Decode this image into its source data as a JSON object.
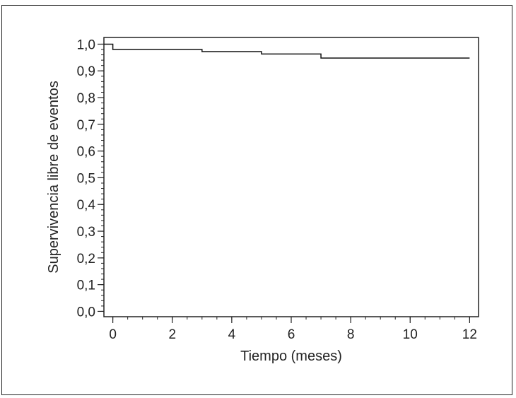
{
  "chart_data": {
    "type": "line",
    "title": "",
    "xlabel": "Tiempo (meses)",
    "ylabel": "Supervivencia libre de eventos",
    "xlim": [
      -0.3,
      12.3
    ],
    "ylim": [
      -0.02,
      1.025
    ],
    "x_ticks": [
      0,
      2,
      4,
      6,
      8,
      10,
      12
    ],
    "x_tick_labels": [
      "0",
      "2",
      "4",
      "6",
      "8",
      "10",
      "12"
    ],
    "y_ticks": [
      0.0,
      0.1,
      0.2,
      0.3,
      0.4,
      0.5,
      0.6,
      0.7,
      0.8,
      0.9,
      1.0
    ],
    "y_tick_labels": [
      "0,0",
      "0,1",
      "0,2",
      "0,3",
      "0,4",
      "0,5",
      "0,6",
      "0,7",
      "0,8",
      "0,9",
      "1,0"
    ],
    "minor_x_step": 0.5,
    "minor_y_step": 0.02,
    "grid": false,
    "series": [
      {
        "step": "post",
        "color": "#111111",
        "x": [
          -0.3,
          0,
          3,
          5,
          7,
          12
        ],
        "y": [
          1.0,
          0.98,
          0.972,
          0.963,
          0.948,
          0.948
        ]
      }
    ]
  }
}
